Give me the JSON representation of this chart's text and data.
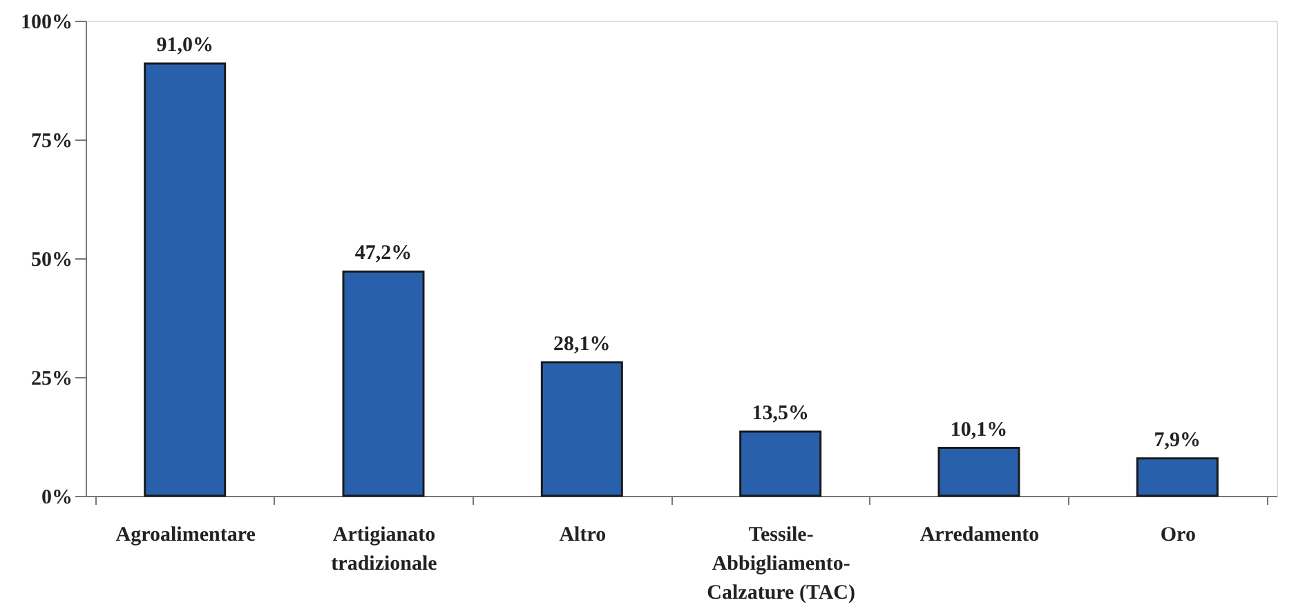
{
  "chart_data": {
    "type": "bar",
    "categories": [
      "Agroalimentare",
      "Artigianato\ntradizionale",
      "Altro",
      "Tessile-\nAbbigliamento-\nCalzature (TAC)",
      "Arredamento",
      "Oro"
    ],
    "values": [
      91.0,
      47.2,
      28.1,
      13.5,
      10.1,
      7.9
    ],
    "value_labels": [
      "91,0%",
      "47,2%",
      "28,1%",
      "13,5%",
      "10,1%",
      "7,9%"
    ],
    "color": "#2860ac",
    "ylim": [
      0,
      100
    ],
    "yticks": [
      {
        "value": 0,
        "label": "0%"
      },
      {
        "value": 25,
        "label": "25%"
      },
      {
        "value": 50,
        "label": "50%"
      },
      {
        "value": 75,
        "label": "75%"
      },
      {
        "value": 100,
        "label": "100%"
      }
    ],
    "grid": false
  }
}
